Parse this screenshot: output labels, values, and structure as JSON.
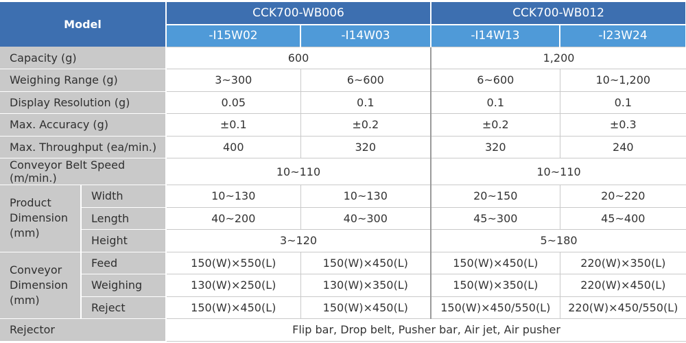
{
  "header": {
    "model_label": "Model",
    "groups": [
      "CCK700-WB006",
      "CCK700-WB012"
    ],
    "variants": [
      "-I15W02",
      "-I14W03",
      "-I14W13",
      "-I23W24"
    ]
  },
  "rows": {
    "capacity": {
      "label": "Capacity (g)",
      "g1": "600",
      "g2": "1,200"
    },
    "weighing_range": {
      "label": "Weighing Range (g)",
      "v": [
        "3~300",
        "6~600",
        "6~600",
        "10~1,200"
      ]
    },
    "display_resolution": {
      "label": "Display Resolution (g)",
      "v": [
        "0.05",
        "0.1",
        "0.1",
        "0.1"
      ]
    },
    "max_accuracy": {
      "label": "Max. Accuracy (g)",
      "v": [
        "±0.1",
        "±0.2",
        "±0.2",
        "±0.3"
      ]
    },
    "max_throughput": {
      "label": "Max. Throughput (ea/min.)",
      "v": [
        "400",
        "320",
        "320",
        "240"
      ]
    },
    "conveyor_speed": {
      "label": "Conveyor Belt Speed (m/min.)",
      "g1": "10~110",
      "g2": "10~110"
    },
    "product_dimension": {
      "label_lines": [
        "Product",
        "Dimension",
        "(mm)"
      ],
      "width": {
        "label": "Width",
        "v": [
          "10~130",
          "10~130",
          "20~150",
          "20~220"
        ]
      },
      "length": {
        "label": "Length",
        "v": [
          "40~200",
          "40~300",
          "45~300",
          "45~400"
        ]
      },
      "height": {
        "label": "Height",
        "g1": "3~120",
        "g2": "5~180"
      }
    },
    "conveyor_dimension": {
      "label_lines": [
        "Conveyor",
        "Dimension",
        "(mm)"
      ],
      "feed": {
        "label": "Feed",
        "v": [
          "150(W)×550(L)",
          "150(W)×450(L)",
          "150(W)×450(L)",
          "220(W)×350(L)"
        ]
      },
      "weighing": {
        "label": "Weighing",
        "v": [
          "130(W)×250(L)",
          "130(W)×350(L)",
          "150(W)×350(L)",
          "220(W)×450(L)"
        ]
      },
      "reject": {
        "label": "Reject",
        "v": [
          "150(W)×450(L)",
          "150(W)×450(L)",
          "150(W)×450/550(L)",
          "220(W)×450/550(L)"
        ]
      }
    },
    "rejector": {
      "label": "Rejector",
      "value": "Flip bar, Drop belt, Pusher bar, Air jet, Air pusher"
    }
  }
}
